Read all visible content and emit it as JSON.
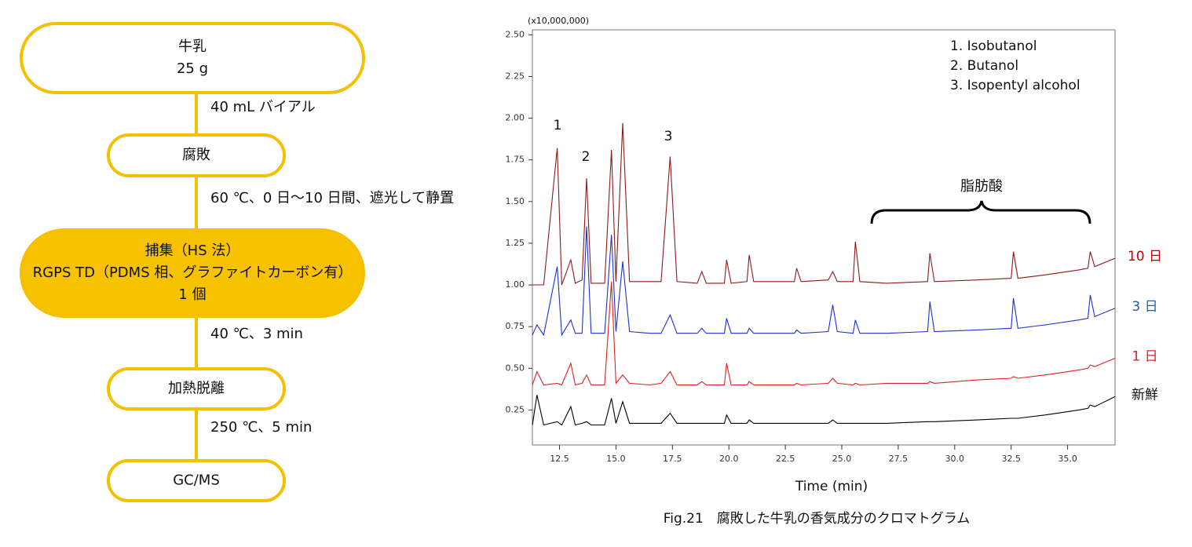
{
  "flowchart": {
    "nodes": [
      {
        "lines": [
          "牛乳",
          "25 g"
        ]
      },
      {
        "lines": [
          "腐敗"
        ]
      },
      {
        "lines": [
          "捕集（HS 法）",
          "RGPS TD（PDMS 相、グラファイトカーボン有）",
          "1 個"
        ]
      },
      {
        "lines": [
          "加熱脱離"
        ]
      },
      {
        "lines": [
          "GC/MS"
        ]
      }
    ],
    "edges": [
      {
        "label": "40 mL バイアル"
      },
      {
        "label": "60 ℃、0 日～10 日間、遮光して静置"
      },
      {
        "label": "40 ℃、3 min"
      },
      {
        "label": "250 ℃、5 min"
      }
    ]
  },
  "chart_data": {
    "type": "line",
    "caption": "Fig.21　腐敗した牛乳の香気成分のクロマトグラム",
    "x_label": "Time (min)",
    "y_multiplier": "(x10,000,000)",
    "legend_texts": [
      "1. Isobutanol",
      "2. Butanol",
      "3. Isopentyl alcohol"
    ],
    "peak_labels": [
      "1",
      "2",
      "3"
    ],
    "bracket_label": "脂肪酸",
    "xlim": [
      11.3,
      37.1
    ],
    "ylim": [
      0.04,
      2.53
    ],
    "xticks": [
      12.5,
      {
        "value": 15,
        "label": "15.0"
      },
      17.5,
      {
        "value": 20,
        "label": "20.0"
      },
      22.5,
      {
        "value": 25,
        "label": "25.0"
      },
      27.5,
      {
        "value": 30,
        "label": "30.0"
      },
      32.5,
      {
        "value": 35,
        "label": "35.0"
      }
    ],
    "yticks": [
      0.25,
      {
        "value": 0.5,
        "label": "0.50"
      },
      0.75,
      {
        "value": 1,
        "label": "1.00"
      },
      1.25,
      {
        "value": 1.5,
        "label": "1.50"
      },
      1.75,
      {
        "value": 2,
        "label": "2.00"
      },
      2.25,
      {
        "value": 2.5,
        "label": "2.50"
      }
    ],
    "x": [
      11.3,
      11.5,
      11.8,
      12.4,
      12.6,
      13.0,
      13.2,
      13.5,
      13.7,
      13.9,
      14.5,
      14.8,
      15.0,
      15.3,
      15.6,
      16.5,
      17.0,
      17.4,
      17.7,
      18.6,
      18.8,
      19.0,
      19.8,
      19.9,
      20.1,
      20.8,
      20.9,
      21.1,
      22.9,
      23.0,
      23.2,
      24.4,
      24.6,
      24.8,
      25.5,
      25.6,
      25.8,
      27.0,
      28.8,
      28.9,
      29.1,
      31.0,
      32.5,
      32.6,
      32.8,
      34.0,
      35.5,
      35.9,
      36.0,
      36.2,
      37.1
    ],
    "series": [
      {
        "name": "10 日",
        "color": "#8b1a1a",
        "label_color": "#c00000",
        "values": [
          1.0,
          1.0,
          1.0,
          1.82,
          1.0,
          1.15,
          1.01,
          1.03,
          1.64,
          1.01,
          1.01,
          1.81,
          1.02,
          1.97,
          1.02,
          1.02,
          1.02,
          1.77,
          1.02,
          1.01,
          1.08,
          1.01,
          1.01,
          1.15,
          1.01,
          1.02,
          1.18,
          1.02,
          1.02,
          1.1,
          1.02,
          1.03,
          1.08,
          1.02,
          1.02,
          1.26,
          1.02,
          1.01,
          1.02,
          1.19,
          1.02,
          1.03,
          1.04,
          1.2,
          1.04,
          1.06,
          1.09,
          1.1,
          1.2,
          1.11,
          1.16
        ]
      },
      {
        "name": "3 日",
        "color": "#1f2fd0",
        "label_color": "#1f5fbf",
        "values": [
          0.7,
          0.76,
          0.7,
          1.11,
          0.7,
          0.79,
          0.71,
          0.71,
          1.35,
          0.71,
          0.71,
          1.3,
          0.72,
          1.14,
          0.72,
          0.71,
          0.71,
          0.82,
          0.71,
          0.71,
          0.74,
          0.71,
          0.71,
          0.8,
          0.71,
          0.71,
          0.74,
          0.71,
          0.71,
          0.73,
          0.71,
          0.72,
          0.88,
          0.72,
          0.71,
          0.79,
          0.71,
          0.71,
          0.72,
          0.9,
          0.72,
          0.73,
          0.74,
          0.92,
          0.74,
          0.76,
          0.79,
          0.8,
          0.94,
          0.81,
          0.86
        ]
      },
      {
        "name": "1 日",
        "color": "#e02020",
        "label_color": "#e02020",
        "values": [
          0.4,
          0.48,
          0.4,
          0.41,
          0.4,
          0.53,
          0.4,
          0.41,
          0.46,
          0.4,
          0.4,
          1.02,
          0.41,
          0.46,
          0.41,
          0.4,
          0.41,
          0.48,
          0.4,
          0.4,
          0.42,
          0.4,
          0.4,
          0.53,
          0.4,
          0.4,
          0.42,
          0.4,
          0.4,
          0.41,
          0.4,
          0.41,
          0.44,
          0.41,
          0.4,
          0.41,
          0.4,
          0.41,
          0.41,
          0.42,
          0.41,
          0.43,
          0.44,
          0.45,
          0.44,
          0.46,
          0.49,
          0.5,
          0.52,
          0.51,
          0.56
        ]
      },
      {
        "name": "新鮮",
        "color": "#000000",
        "label_color": "#111111",
        "values": [
          0.16,
          0.34,
          0.16,
          0.18,
          0.16,
          0.27,
          0.16,
          0.17,
          0.18,
          0.16,
          0.16,
          0.32,
          0.17,
          0.3,
          0.17,
          0.17,
          0.17,
          0.23,
          0.17,
          0.17,
          0.17,
          0.17,
          0.17,
          0.22,
          0.17,
          0.17,
          0.19,
          0.17,
          0.17,
          0.17,
          0.17,
          0.17,
          0.19,
          0.17,
          0.17,
          0.17,
          0.17,
          0.17,
          0.18,
          0.18,
          0.18,
          0.19,
          0.2,
          0.2,
          0.2,
          0.22,
          0.25,
          0.26,
          0.28,
          0.27,
          0.33
        ]
      }
    ]
  }
}
